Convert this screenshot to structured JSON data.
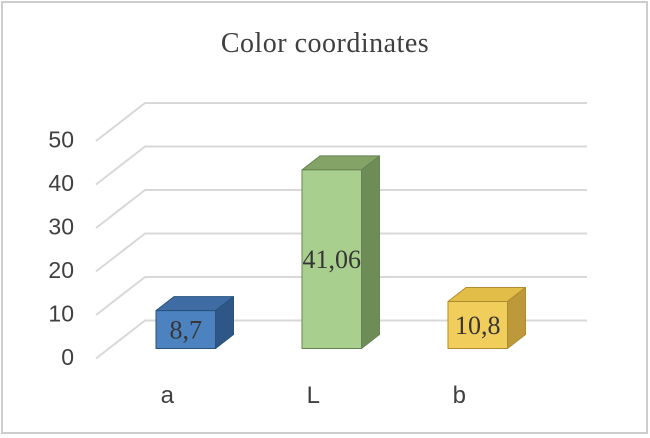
{
  "chart_data": {
    "type": "bar",
    "projection": "3d",
    "title": "Color coordinates",
    "categories": [
      "a",
      "L",
      "b"
    ],
    "values": [
      8.7,
      41.06,
      10.8
    ],
    "data_labels": [
      "8,7",
      "41,06",
      "10,8"
    ],
    "decimal_separator": ",",
    "xlabel": "",
    "ylabel": "",
    "ylim": [
      0,
      50
    ],
    "yticks": [
      0,
      10,
      20,
      30,
      40,
      50
    ],
    "grid": true,
    "legend": false,
    "series_colors": [
      {
        "name": "blue",
        "front": "#4B82BF",
        "top": "#3E6CA3",
        "side": "#2E5787",
        "edge": "#28517E"
      },
      {
        "name": "green",
        "front": "#A9CF8E",
        "top": "#83A367",
        "side": "#6E8C57",
        "edge": "#678453"
      },
      {
        "name": "yellow",
        "front": "#F1CD5B",
        "top": "#E2BD48",
        "side": "#BD9939",
        "edge": "#AE8C2F"
      }
    ],
    "grid_color": "#D8D8D8",
    "tick_color": "#404040",
    "label_color": "#363636",
    "title_color": "#3F3F3F",
    "border_color": "#CDCDCD",
    "background": "#FFFFFF"
  }
}
